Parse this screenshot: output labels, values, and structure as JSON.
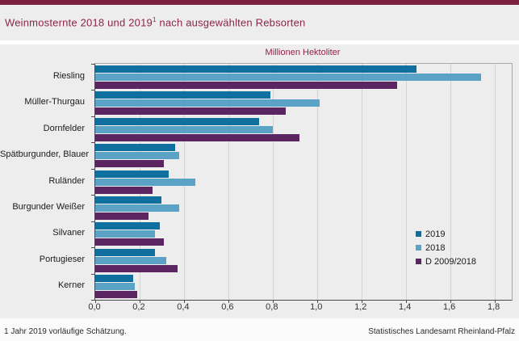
{
  "header": {
    "title_main": "Weinmosternte 2018 und 2019",
    "title_sup": "1",
    "title_rest": " nach ausgewählten Rebsorten"
  },
  "chart_data": {
    "type": "bar",
    "orientation": "horizontal",
    "title": "Weinmosternte 2018 und 2019 nach ausgewählten Rebsorten",
    "unit_label": "Millionen Hektoliter",
    "categories": [
      "Riesling",
      "Müller-Thurgau",
      "Dornfelder",
      "Spätburgunder, Blauer",
      "Ruländer",
      "Burgunder Weißer",
      "Silvaner",
      "Portugieser",
      "Kerner"
    ],
    "series": [
      {
        "name": "2019",
        "color": "#0f70a0",
        "values": [
          1.45,
          0.79,
          0.74,
          0.36,
          0.33,
          0.3,
          0.29,
          0.27,
          0.17
        ]
      },
      {
        "name": "2018",
        "color": "#5ba3c6",
        "values": [
          1.74,
          1.01,
          0.8,
          0.38,
          0.45,
          0.38,
          0.27,
          0.32,
          0.18
        ]
      },
      {
        "name": "D 2009/2018",
        "color": "#5a2560",
        "values": [
          1.36,
          0.86,
          0.92,
          0.31,
          0.26,
          0.24,
          0.31,
          0.37,
          0.19
        ]
      }
    ],
    "xlim": [
      0.0,
      1.8
    ],
    "xtick_step": 0.2,
    "xticks": [
      "0,0",
      "0,2",
      "0,4",
      "0,6",
      "0,8",
      "1,0",
      "1,2",
      "1,4",
      "1,6",
      "1,8"
    ],
    "grid": true,
    "legend_position": "right-middle"
  },
  "footer": {
    "footnote": "1 Jahr 2019 vorläufige Schätzung.",
    "source": "Statistisches Landesamt Rheinland-Pfalz"
  },
  "colors": {
    "top_bar": "#7d1f3f",
    "accent_text": "#8e2448",
    "band_bg": "#ededed"
  }
}
